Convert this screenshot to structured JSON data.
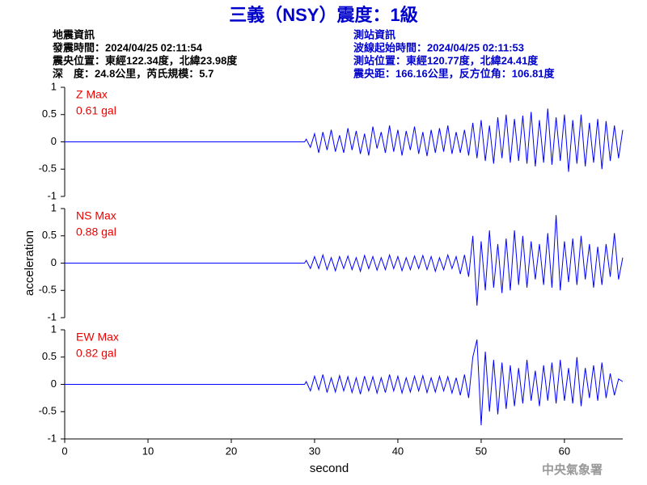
{
  "header": {
    "title": "三義（NSY）震度：1級",
    "left": [
      "地震資訊",
      "發震時間：2024/04/25 02:11:54",
      "震央位置：東經122.34度，北緯23.98度",
      "深　度：24.8公里，芮氏規模：5.7"
    ],
    "right": [
      "測站資訊",
      "波線起始時間：2024/04/25 02:11:53",
      "測站位置：東經120.77度，北緯24.41度",
      "震央距：166.16公里，反方位角：106.81度"
    ]
  },
  "footer": "中央氣象署",
  "chart_data": [
    {
      "type": "line",
      "label": "Z Max",
      "max_label": "0.61 gal",
      "color": "#0000ff",
      "x": [
        0,
        28.8,
        29,
        29.5,
        30,
        30.5,
        31,
        31.5,
        32,
        32.5,
        33,
        33.5,
        34,
        34.5,
        35,
        35.5,
        36,
        36.5,
        37,
        37.5,
        38,
        38.5,
        39,
        39.5,
        40,
        40.5,
        41,
        41.5,
        42,
        42.5,
        43,
        43.5,
        44,
        44.5,
        45,
        45.5,
        46,
        46.5,
        47,
        47.5,
        48,
        48.5,
        49,
        49.5,
        50,
        50.5,
        51,
        51.5,
        52,
        52.5,
        53,
        53.5,
        54,
        54.5,
        55,
        55.5,
        56,
        56.5,
        57,
        57.5,
        58,
        58.5,
        59,
        59.5,
        60,
        60.5,
        61,
        61.5,
        62,
        62.5,
        63,
        63.5,
        64,
        64.5,
        65,
        65.5,
        66,
        66.5,
        67
      ],
      "values": [
        0,
        0,
        0.05,
        -0.1,
        0.15,
        -0.2,
        0.18,
        -0.15,
        0.22,
        -0.18,
        0.12,
        -0.2,
        0.25,
        -0.15,
        0.2,
        -0.22,
        0.15,
        -0.25,
        0.28,
        -0.12,
        0.18,
        -0.2,
        0.3,
        -0.18,
        0.22,
        -0.25,
        0.2,
        -0.15,
        0.28,
        -0.22,
        0.18,
        -0.26,
        0.22,
        -0.2,
        0.25,
        -0.18,
        0.3,
        -0.22,
        0.18,
        -0.2,
        0.22,
        -0.25,
        0.35,
        -0.3,
        0.4,
        -0.35,
        0.3,
        -0.4,
        0.45,
        -0.3,
        0.5,
        -0.38,
        0.42,
        -0.35,
        0.48,
        -0.4,
        0.55,
        -0.45,
        0.4,
        -0.38,
        0.61,
        -0.42,
        0.45,
        -0.35,
        0.5,
        -0.55,
        0.4,
        -0.4,
        0.5,
        -0.45,
        0.35,
        -0.38,
        0.42,
        -0.5,
        0.38,
        -0.35,
        0.3,
        -0.3,
        0.22
      ],
      "xlim": [
        0,
        67
      ],
      "ylim": [
        -1,
        1
      ],
      "yticks": [
        -1,
        -0.5,
        0,
        0.5,
        1
      ]
    },
    {
      "type": "line",
      "label": "NS Max",
      "max_label": "0.88 gal",
      "color": "#0000ff",
      "ylabel": "acceleration",
      "x": [
        0,
        28.8,
        29,
        29.5,
        30,
        30.5,
        31,
        31.5,
        32,
        32.5,
        33,
        33.5,
        34,
        34.5,
        35,
        35.5,
        36,
        36.5,
        37,
        37.5,
        38,
        38.5,
        39,
        39.5,
        40,
        40.5,
        41,
        41.5,
        42,
        42.5,
        43,
        43.5,
        44,
        44.5,
        45,
        45.5,
        46,
        46.5,
        47,
        47.5,
        48,
        48.5,
        49,
        49.5,
        50,
        50.5,
        51,
        51.5,
        52,
        52.5,
        53,
        53.5,
        54,
        54.5,
        55,
        55.5,
        56,
        56.5,
        57,
        57.5,
        58,
        58.5,
        59,
        59.5,
        60,
        60.5,
        61,
        61.5,
        62,
        62.5,
        63,
        63.5,
        64,
        64.5,
        65,
        65.5,
        66,
        66.5,
        67
      ],
      "values": [
        0,
        0,
        0.05,
        -0.1,
        0.12,
        -0.1,
        0.15,
        -0.12,
        0.1,
        -0.14,
        0.12,
        -0.1,
        0.13,
        -0.12,
        0.1,
        -0.15,
        0.14,
        -0.1,
        0.12,
        -0.13,
        0.1,
        -0.12,
        0.15,
        -0.1,
        0.12,
        -0.14,
        0.1,
        -0.12,
        0.13,
        -0.1,
        0.14,
        -0.12,
        0.12,
        -0.15,
        0.1,
        -0.12,
        0.15,
        -0.1,
        0.12,
        -0.2,
        0.15,
        -0.25,
        0.5,
        -0.78,
        0.4,
        -0.5,
        0.6,
        -0.45,
        0.35,
        -0.55,
        0.45,
        -0.5,
        0.6,
        -0.4,
        0.5,
        -0.45,
        0.4,
        -0.3,
        0.35,
        -0.4,
        0.55,
        -0.45,
        0.88,
        -0.5,
        0.4,
        -0.35,
        0.45,
        -0.4,
        0.5,
        -0.3,
        0.35,
        -0.45,
        0.3,
        -0.4,
        0.35,
        -0.25,
        0.55,
        -0.3,
        0.1
      ],
      "xlim": [
        0,
        67
      ],
      "ylim": [
        -1,
        1
      ],
      "yticks": [
        -1,
        -0.5,
        0,
        0.5,
        1
      ]
    },
    {
      "type": "line",
      "label": "EW Max",
      "max_label": "0.82 gal",
      "color": "#0000ff",
      "xlabel": "second",
      "x": [
        0,
        28.8,
        29,
        29.5,
        30,
        30.5,
        31,
        31.5,
        32,
        32.5,
        33,
        33.5,
        34,
        34.5,
        35,
        35.5,
        36,
        36.5,
        37,
        37.5,
        38,
        38.5,
        39,
        39.5,
        40,
        40.5,
        41,
        41.5,
        42,
        42.5,
        43,
        43.5,
        44,
        44.5,
        45,
        45.5,
        46,
        46.5,
        47,
        47.5,
        48,
        48.5,
        49,
        49.5,
        50,
        50.5,
        51,
        51.5,
        52,
        52.5,
        53,
        53.5,
        54,
        54.5,
        55,
        55.5,
        56,
        56.5,
        57,
        57.5,
        58,
        58.5,
        59,
        59.5,
        60,
        60.5,
        61,
        61.5,
        62,
        62.5,
        63,
        63.5,
        64,
        64.5,
        65,
        65.5,
        66,
        66.5,
        67
      ],
      "values": [
        0,
        0,
        0.05,
        -0.12,
        0.15,
        -0.1,
        0.18,
        -0.15,
        0.12,
        -0.14,
        0.16,
        -0.12,
        0.14,
        -0.15,
        0.12,
        -0.18,
        0.15,
        -0.12,
        0.14,
        -0.16,
        0.12,
        -0.15,
        0.18,
        -0.12,
        0.15,
        -0.16,
        0.12,
        -0.14,
        0.15,
        -0.12,
        0.16,
        -0.15,
        0.12,
        -0.14,
        0.15,
        -0.12,
        0.14,
        -0.16,
        0.12,
        -0.2,
        0.18,
        -0.25,
        0.5,
        0.82,
        -0.75,
        0.6,
        -0.5,
        0.45,
        -0.55,
        0.4,
        -0.45,
        0.35,
        -0.4,
        0.3,
        -0.35,
        0.45,
        -0.3,
        0.25,
        -0.4,
        0.35,
        -0.3,
        0.4,
        -0.35,
        0.45,
        -0.3,
        0.3,
        -0.35,
        0.5,
        -0.4,
        0.3,
        -0.25,
        0.35,
        -0.3,
        0.4,
        -0.25,
        0.2,
        -0.2,
        0.1,
        0.05
      ],
      "xlim": [
        0,
        67
      ],
      "ylim": [
        -1,
        1
      ],
      "yticks": [
        -1,
        -0.5,
        0,
        0.5,
        1
      ],
      "xticks": [
        0,
        10,
        20,
        30,
        40,
        50,
        60
      ]
    }
  ]
}
